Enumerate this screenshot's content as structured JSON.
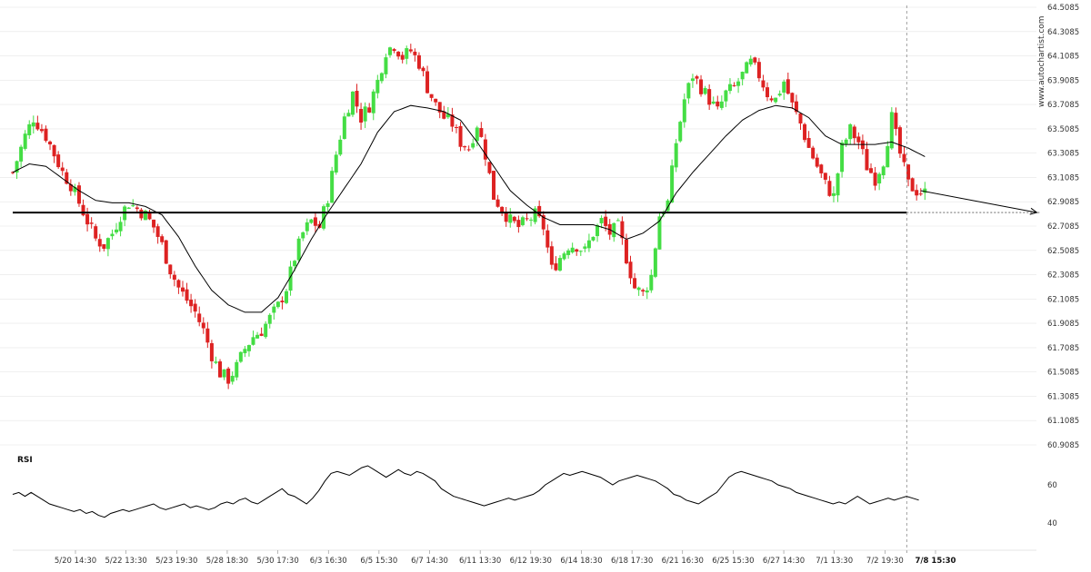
{
  "chart_data": [
    {
      "type": "candlestick",
      "watermark": "www.autochartist.com",
      "y_axis_labels": [
        "64.5085",
        "64.3085",
        "64.1085",
        "63.9085",
        "63.7085",
        "63.5085",
        "63.3085",
        "63.1085",
        "62.9085",
        "62.7085",
        "62.5085",
        "62.3085",
        "62.1085",
        "61.9085",
        "61.7085",
        "61.5085",
        "61.3085",
        "61.1085",
        "60.9085"
      ],
      "ylim": [
        60.9085,
        64.5085
      ],
      "x_tick_labels": [
        "5/20 14:30",
        "5/22 13:30",
        "5/23 19:30",
        "5/28 18:30",
        "5/30 17:30",
        "6/3 16:30",
        "6/5 15:30",
        "6/7 14:30",
        "6/11 13:30",
        "6/12 19:30",
        "6/14 18:30",
        "6/18 17:30",
        "6/21 16:30",
        "6/25 15:30",
        "6/27 14:30",
        "7/1 13:30",
        "7/2 19:30",
        "7/8 15:30"
      ],
      "current_time_label": "7/8 15:30",
      "support_level": 62.82,
      "colors": {
        "up": "#44dd44",
        "down": "#dd2222",
        "ma": "#000000",
        "level": "#000000",
        "grid": "#e6e6e6"
      },
      "close_path": [
        [
          0,
          63.15
        ],
        [
          3,
          63.45
        ],
        [
          5,
          63.6
        ],
        [
          8,
          63.45
        ],
        [
          10,
          63.3
        ],
        [
          12,
          63.15
        ],
        [
          14,
          63.05
        ],
        [
          16,
          62.9
        ],
        [
          18,
          62.75
        ],
        [
          20,
          62.6
        ],
        [
          22,
          62.55
        ],
        [
          24,
          62.65
        ],
        [
          26,
          62.8
        ],
        [
          28,
          62.9
        ],
        [
          30,
          62.85
        ],
        [
          32,
          62.8
        ],
        [
          34,
          62.7
        ],
        [
          36,
          62.55
        ],
        [
          38,
          62.35
        ],
        [
          40,
          62.2
        ],
        [
          42,
          62.1
        ],
        [
          44,
          62.0
        ],
        [
          46,
          61.85
        ],
        [
          48,
          61.65
        ],
        [
          50,
          61.5
        ],
        [
          52,
          61.45
        ],
        [
          54,
          61.55
        ],
        [
          56,
          61.7
        ],
        [
          58,
          61.8
        ],
        [
          60,
          61.85
        ],
        [
          62,
          61.95
        ],
        [
          64,
          62.05
        ],
        [
          66,
          62.2
        ],
        [
          68,
          62.45
        ],
        [
          70,
          62.65
        ],
        [
          72,
          62.75
        ],
        [
          74,
          62.7
        ],
        [
          76,
          62.95
        ],
        [
          78,
          63.3
        ],
        [
          80,
          63.6
        ],
        [
          82,
          63.8
        ],
        [
          84,
          63.6
        ],
        [
          86,
          63.7
        ],
        [
          88,
          63.9
        ],
        [
          90,
          64.15
        ],
        [
          92,
          64.2
        ],
        [
          94,
          64.1
        ],
        [
          96,
          64.15
        ],
        [
          98,
          64.05
        ],
        [
          100,
          63.85
        ],
        [
          102,
          63.7
        ],
        [
          104,
          63.6
        ],
        [
          106,
          63.55
        ],
        [
          108,
          63.4
        ],
        [
          110,
          63.35
        ],
        [
          112,
          63.55
        ],
        [
          114,
          63.3
        ],
        [
          116,
          62.95
        ],
        [
          118,
          62.85
        ],
        [
          120,
          62.75
        ],
        [
          122,
          62.7
        ],
        [
          124,
          62.75
        ],
        [
          126,
          62.8
        ],
        [
          128,
          62.7
        ],
        [
          130,
          62.35
        ],
        [
          132,
          62.45
        ],
        [
          134,
          62.55
        ],
        [
          136,
          62.55
        ],
        [
          138,
          62.5
        ],
        [
          140,
          62.65
        ],
        [
          142,
          62.75
        ],
        [
          144,
          62.65
        ],
        [
          146,
          62.7
        ],
        [
          148,
          62.45
        ],
        [
          150,
          62.2
        ],
        [
          152,
          62.15
        ],
        [
          154,
          62.3
        ],
        [
          156,
          62.8
        ],
        [
          158,
          62.9
        ],
        [
          160,
          63.4
        ],
        [
          162,
          63.75
        ],
        [
          164,
          63.95
        ],
        [
          166,
          63.85
        ],
        [
          168,
          63.75
        ],
        [
          170,
          63.65
        ],
        [
          172,
          63.8
        ],
        [
          174,
          63.85
        ],
        [
          176,
          63.95
        ],
        [
          178,
          64.05
        ],
        [
          180,
          63.95
        ],
        [
          182,
          63.8
        ],
        [
          184,
          63.75
        ],
        [
          186,
          63.9
        ],
        [
          188,
          63.7
        ],
        [
          190,
          63.55
        ],
        [
          192,
          63.35
        ],
        [
          194,
          63.2
        ],
        [
          196,
          63.05
        ],
        [
          198,
          62.95
        ],
        [
          200,
          63.35
        ],
        [
          202,
          63.5
        ],
        [
          204,
          63.4
        ],
        [
          206,
          63.2
        ],
        [
          208,
          63.1
        ],
        [
          210,
          63.25
        ],
        [
          212,
          63.6
        ],
        [
          214,
          63.3
        ],
        [
          216,
          63.05
        ],
        [
          218,
          63.0
        ],
        [
          220,
          62.98
        ]
      ],
      "ma_path": [
        [
          0,
          63.15
        ],
        [
          4,
          63.22
        ],
        [
          8,
          63.2
        ],
        [
          12,
          63.1
        ],
        [
          16,
          63.0
        ],
        [
          20,
          62.92
        ],
        [
          24,
          62.9
        ],
        [
          28,
          62.9
        ],
        [
          32,
          62.87
        ],
        [
          36,
          62.8
        ],
        [
          40,
          62.62
        ],
        [
          44,
          62.38
        ],
        [
          48,
          62.18
        ],
        [
          52,
          62.06
        ],
        [
          56,
          62.0
        ],
        [
          60,
          62.0
        ],
        [
          64,
          62.12
        ],
        [
          68,
          62.35
        ],
        [
          72,
          62.6
        ],
        [
          76,
          62.82
        ],
        [
          80,
          63.02
        ],
        [
          84,
          63.22
        ],
        [
          88,
          63.48
        ],
        [
          92,
          63.65
        ],
        [
          96,
          63.7
        ],
        [
          100,
          63.68
        ],
        [
          104,
          63.65
        ],
        [
          108,
          63.58
        ],
        [
          112,
          63.4
        ],
        [
          116,
          63.2
        ],
        [
          120,
          63.0
        ],
        [
          124,
          62.88
        ],
        [
          128,
          62.78
        ],
        [
          132,
          62.72
        ],
        [
          136,
          62.72
        ],
        [
          140,
          62.72
        ],
        [
          144,
          62.68
        ],
        [
          148,
          62.6
        ],
        [
          152,
          62.65
        ],
        [
          156,
          62.75
        ],
        [
          160,
          62.98
        ],
        [
          164,
          63.15
        ],
        [
          168,
          63.3
        ],
        [
          172,
          63.45
        ],
        [
          176,
          63.58
        ],
        [
          180,
          63.66
        ],
        [
          184,
          63.7
        ],
        [
          188,
          63.68
        ],
        [
          192,
          63.6
        ],
        [
          196,
          63.45
        ],
        [
          200,
          63.38
        ],
        [
          204,
          63.38
        ],
        [
          208,
          63.38
        ],
        [
          212,
          63.4
        ],
        [
          216,
          63.35
        ],
        [
          220,
          63.28
        ]
      ],
      "projection": {
        "from": [
          219,
          63.0
        ],
        "to": [
          247,
          62.82
        ]
      },
      "rsi": {
        "title": "RSI",
        "y_axis_labels": [
          "60",
          "40"
        ],
        "values": [
          55,
          56,
          54,
          56,
          54,
          52,
          50,
          49,
          48,
          47,
          46,
          47,
          45,
          46,
          44,
          43,
          45,
          46,
          47,
          46,
          47,
          48,
          49,
          50,
          48,
          47,
          48,
          49,
          50,
          48,
          49,
          48,
          47,
          48,
          50,
          51,
          50,
          52,
          53,
          51,
          50,
          52,
          54,
          56,
          58,
          55,
          54,
          52,
          50,
          53,
          57,
          62,
          66,
          67,
          66,
          65,
          67,
          69,
          70,
          68,
          66,
          64,
          66,
          68,
          66,
          65,
          67,
          66,
          64,
          62,
          58,
          56,
          54,
          53,
          52,
          51,
          50,
          49,
          50,
          51,
          52,
          53,
          52,
          53,
          54,
          55,
          57,
          60,
          62,
          64,
          66,
          65,
          66,
          67,
          66,
          65,
          64,
          62,
          60,
          62,
          63,
          64,
          65,
          64,
          63,
          62,
          60,
          58,
          55,
          54,
          52,
          51,
          50,
          52,
          54,
          56,
          60,
          64,
          66,
          67,
          66,
          65,
          64,
          63,
          62,
          60,
          59,
          58,
          56,
          55,
          54,
          53,
          52,
          51,
          50,
          51,
          50,
          52,
          54,
          52,
          50,
          51,
          52,
          53,
          52,
          53,
          54,
          53,
          52
        ]
      }
    }
  ]
}
